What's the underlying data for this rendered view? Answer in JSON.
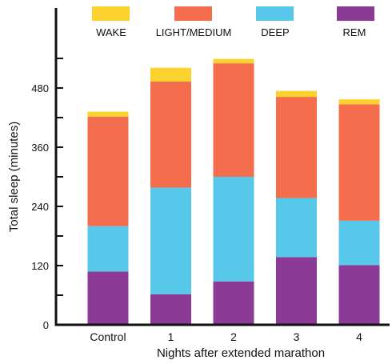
{
  "chart_data": {
    "type": "bar",
    "stacked": true,
    "title": "",
    "xlabel": "Nights after extended marathon",
    "ylabel": "Total sleep (minutes)",
    "categories": [
      "Control",
      "1",
      "2",
      "3",
      "4"
    ],
    "ylim": [
      0,
      560
    ],
    "yticks_labeled": [
      0,
      120,
      240,
      360,
      480
    ],
    "yticks_minor": [
      60,
      180,
      300,
      420,
      540
    ],
    "grid": false,
    "legend_position": "top",
    "series": [
      {
        "name": "REM",
        "color": "#8b3b96",
        "values": [
          108,
          62,
          88,
          137,
          121
        ]
      },
      {
        "name": "DEEP",
        "color": "#58c8ea",
        "values": [
          92,
          216,
          212,
          120,
          90
        ]
      },
      {
        "name": "LIGHT/MEDIUM",
        "color": "#f46e4d",
        "values": [
          222,
          215,
          230,
          205,
          236
        ]
      },
      {
        "name": "WAKE",
        "color": "#fbd22e",
        "values": [
          10,
          28,
          9,
          12,
          10
        ]
      }
    ],
    "legend_order": [
      "WAKE",
      "LIGHT/MEDIUM",
      "DEEP",
      "REM"
    ]
  }
}
